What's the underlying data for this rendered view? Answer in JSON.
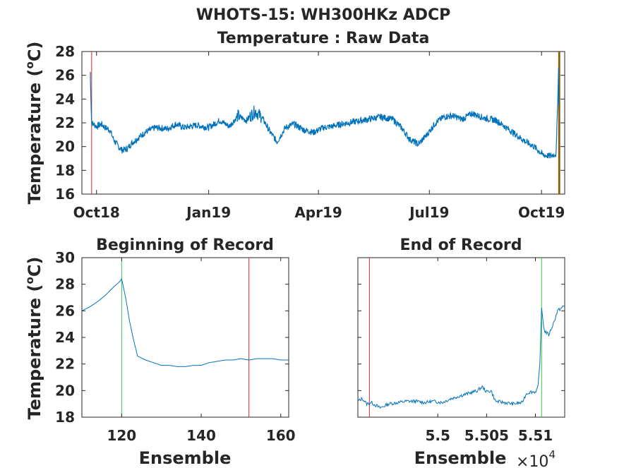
{
  "figure": {
    "title_line1": "WHOTS-15: WH300HKz ADCP",
    "title_line2": "Temperature : Raw Data"
  },
  "colors": {
    "series": "#0072bd",
    "red_marker": "#d62728",
    "green_marker": "#2ecc40",
    "dark_marker": "#7f5f00",
    "axis": "#262626"
  },
  "chart_data": [
    {
      "type": "line",
      "panel": "top",
      "title": "",
      "xlabel": "",
      "ylabel": "Temperature (°C)",
      "ylabel_parts": {
        "pre": "Temperature (",
        "sup": "o",
        "post": "C)"
      },
      "x_ticks": [
        "Oct18",
        "Jan19",
        "Apr19",
        "Jul19",
        "Oct19"
      ],
      "x_tick_dates": [
        "2018-10-01",
        "2019-01-01",
        "2019-04-01",
        "2019-07-01",
        "2019-10-01"
      ],
      "xlim": [
        "2018-09-19",
        "2019-10-20"
      ],
      "ylim": [
        16,
        28
      ],
      "y_ticks": [
        16,
        18,
        20,
        22,
        24,
        26,
        28
      ],
      "grid": false,
      "markers": [
        {
          "date": "2018-09-27",
          "color": "red"
        },
        {
          "date": "2019-10-15",
          "color": "red"
        },
        {
          "date": "2019-10-15",
          "color": "dark"
        }
      ],
      "series": [
        {
          "points": [
            [
              "2018-09-26",
              26.3
            ],
            [
              "2018-09-26",
              25.6
            ],
            [
              "2018-09-27",
              22.0
            ],
            [
              "2018-10-01",
              21.7
            ],
            [
              "2018-10-05",
              21.9
            ],
            [
              "2018-10-08",
              21.6
            ],
            [
              "2018-10-12",
              21.4
            ],
            [
              "2018-10-15",
              20.6
            ],
            [
              "2018-10-19",
              20.0
            ],
            [
              "2018-10-22",
              19.7
            ],
            [
              "2018-10-26",
              19.8
            ],
            [
              "2018-10-30",
              20.3
            ],
            [
              "2018-11-05",
              20.8
            ],
            [
              "2018-11-10",
              21.2
            ],
            [
              "2018-11-18",
              21.6
            ],
            [
              "2018-11-28",
              21.5
            ],
            [
              "2018-12-05",
              21.9
            ],
            [
              "2018-12-12",
              21.6
            ],
            [
              "2018-12-22",
              21.8
            ],
            [
              "2019-01-01",
              21.6
            ],
            [
              "2019-01-10",
              22.2
            ],
            [
              "2019-01-18",
              21.7
            ],
            [
              "2019-01-25",
              22.6
            ],
            [
              "2019-02-01",
              22.2
            ],
            [
              "2019-02-08",
              23.0
            ],
            [
              "2019-02-14",
              22.4
            ],
            [
              "2019-02-20",
              21.3
            ],
            [
              "2019-02-26",
              20.4
            ],
            [
              "2019-03-05",
              21.6
            ],
            [
              "2019-03-12",
              21.9
            ],
            [
              "2019-03-20",
              21.4
            ],
            [
              "2019-03-28",
              21.2
            ],
            [
              "2019-04-05",
              21.6
            ],
            [
              "2019-04-12",
              21.7
            ],
            [
              "2019-04-20",
              21.9
            ],
            [
              "2019-05-01",
              22.1
            ],
            [
              "2019-05-12",
              22.3
            ],
            [
              "2019-05-22",
              22.5
            ],
            [
              "2019-06-01",
              22.3
            ],
            [
              "2019-06-08",
              21.6
            ],
            [
              "2019-06-15",
              20.6
            ],
            [
              "2019-06-22",
              20.2
            ],
            [
              "2019-06-29",
              21.0
            ],
            [
              "2019-07-06",
              22.0
            ],
            [
              "2019-07-13",
              22.5
            ],
            [
              "2019-07-20",
              22.6
            ],
            [
              "2019-07-28",
              22.3
            ],
            [
              "2019-08-05",
              22.8
            ],
            [
              "2019-08-15",
              22.4
            ],
            [
              "2019-08-25",
              22.2
            ],
            [
              "2019-09-02",
              21.6
            ],
            [
              "2019-09-10",
              21.0
            ],
            [
              "2019-09-18",
              20.4
            ],
            [
              "2019-09-25",
              20.0
            ],
            [
              "2019-10-02",
              19.3
            ],
            [
              "2019-10-08",
              19.2
            ],
            [
              "2019-10-13",
              19.4
            ],
            [
              "2019-10-15",
              26.6
            ],
            [
              "2019-10-15",
              23.6
            ]
          ]
        }
      ]
    },
    {
      "type": "line",
      "panel": "bottom-left",
      "title": "Beginning of Record",
      "xlabel": "Ensemble",
      "ylabel": "Temperature (°C)",
      "ylabel_parts": {
        "pre": "Temperature (",
        "sup": "o",
        "post": "C)"
      },
      "xlim": [
        110,
        162
      ],
      "ylim": [
        18,
        30
      ],
      "x_ticks": [
        120,
        140,
        160
      ],
      "y_ticks": [
        18,
        20,
        22,
        24,
        26,
        28,
        30
      ],
      "grid": false,
      "markers": [
        {
          "x": 120,
          "color": "green"
        },
        {
          "x": 152,
          "color": "red"
        }
      ],
      "series": [
        {
          "x": [
            110,
            112,
            114,
            116,
            118,
            119.5,
            120,
            121,
            122,
            123,
            124,
            126,
            128,
            130,
            132,
            134,
            136,
            138,
            140,
            142,
            144,
            146,
            148,
            150,
            152,
            154,
            156,
            158,
            160,
            162
          ],
          "values": [
            26.0,
            26.3,
            26.7,
            27.2,
            27.8,
            28.2,
            28.4,
            27.0,
            25.2,
            23.8,
            22.6,
            22.3,
            22.1,
            21.9,
            21.9,
            21.8,
            21.8,
            21.9,
            21.9,
            22.1,
            22.2,
            22.3,
            22.3,
            22.4,
            22.3,
            22.4,
            22.4,
            22.4,
            22.3,
            22.3
          ]
        }
      ]
    },
    {
      "type": "line",
      "panel": "bottom-right",
      "title": "End of Record",
      "xlabel": "Ensemble",
      "ylabel": "",
      "x_multiplier_base": "×10",
      "x_multiplier_exp": "4",
      "xlim": [
        54.905,
        55.138
      ],
      "x_scale_label": "values shown ×10^4 ensembles (axis in thousands)",
      "ylim": [
        18,
        30
      ],
      "x_ticks": [
        5.5,
        5.505,
        5.51
      ],
      "x_tick_positions": [
        54.995,
        55.05,
        55.105
      ],
      "grid": false,
      "markers": [
        {
          "x": 54.918,
          "color": "red"
        },
        {
          "x": 55.112,
          "color": "green"
        }
      ],
      "series": [
        {
          "x": [
            54.905,
            54.91,
            54.915,
            54.92,
            54.93,
            54.94,
            54.95,
            54.96,
            54.97,
            54.98,
            54.99,
            55.0,
            55.01,
            55.02,
            55.03,
            55.04,
            55.045,
            55.05,
            55.055,
            55.06,
            55.07,
            55.08,
            55.09,
            55.095,
            55.1,
            55.105,
            55.108,
            55.11,
            55.112,
            55.115,
            55.12,
            55.125,
            55.13,
            55.138
          ],
          "values": [
            19.2,
            19.4,
            19.0,
            19.1,
            18.7,
            19.0,
            19.1,
            19.2,
            19.2,
            19.1,
            19.2,
            19.1,
            19.4,
            19.6,
            19.8,
            20.0,
            20.3,
            19.9,
            20.0,
            19.2,
            19.1,
            19.0,
            19.1,
            19.8,
            19.9,
            19.9,
            20.3,
            22.0,
            26.2,
            24.5,
            24.2,
            25.0,
            26.0,
            26.4
          ]
        }
      ]
    }
  ]
}
